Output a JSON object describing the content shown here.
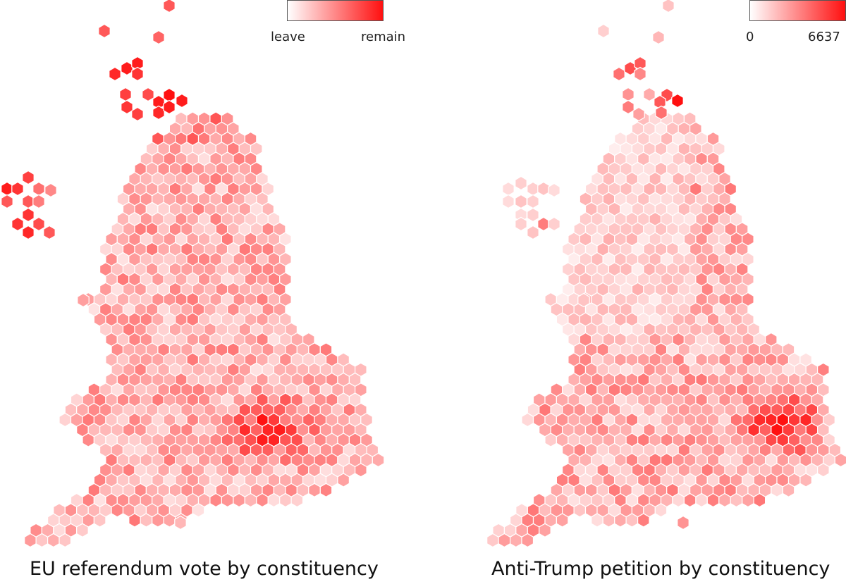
{
  "colors": {
    "low": "#ffffff",
    "high": "#ff1010",
    "hex_stroke": "#ffffff",
    "legend_border": "#555555"
  },
  "maps": [
    {
      "title": "EU referendum vote by constituency",
      "legend": {
        "low_label": "leave",
        "high_label": "remain"
      }
    },
    {
      "title": "Anti-Trump petition by constituency",
      "legend": {
        "low_label": "0",
        "high_label": "6637"
      }
    }
  ]
}
